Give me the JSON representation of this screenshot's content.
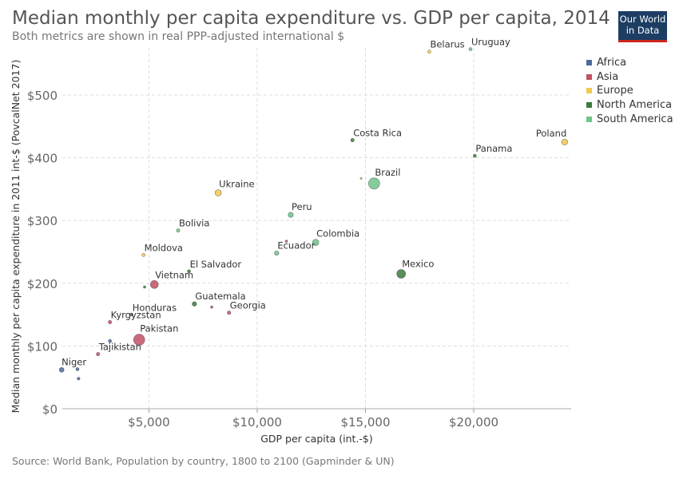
{
  "header": {
    "title": "Median monthly per capita expenditure vs. GDP per capita, 2014",
    "subtitle": "Both metrics are shown in real PPP-adjusted international $",
    "logo_line1": "Our World",
    "logo_line2": "in Data"
  },
  "footer": {
    "source": "Source: World Bank, Population by country, 1800 to 2100 (Gapminder & UN)"
  },
  "colors": {
    "Africa": "#4c6a9c",
    "Asia": "#c15065",
    "Europe": "#f2c94c",
    "North America": "#3c7a3c",
    "South America": "#6fc489"
  },
  "chart_data": {
    "type": "scatter",
    "title": "Median monthly per capita expenditure vs. GDP per capita, 2014",
    "subtitle": "Both metrics are shown in real PPP-adjusted international $",
    "xlabel": "GDP per capita (int.-$)",
    "ylabel": "Median monthly per capita expenditure in 2011 int-$ (PovcalNet 2017)",
    "xlim": [
      1000,
      24500
    ],
    "ylim": [
      0,
      575
    ],
    "x_ticks": [
      5000,
      10000,
      15000,
      20000
    ],
    "x_tick_labels": [
      "$5,000",
      "$10,000",
      "$15,000",
      "$20,000"
    ],
    "y_ticks": [
      0,
      100,
      200,
      300,
      400,
      500
    ],
    "y_tick_labels": [
      "$0",
      "$100",
      "$200",
      "$300",
      "$400",
      "$500"
    ],
    "grid": true,
    "legend_position": "right",
    "legend": [
      "Africa",
      "Asia",
      "Europe",
      "North America",
      "South America"
    ],
    "points": [
      {
        "label": "Niger",
        "region": "Africa",
        "x": 970,
        "y": 62,
        "r": 3
      },
      {
        "label": "",
        "region": "Africa",
        "x": 1700,
        "y": 63,
        "r": 2
      },
      {
        "label": "",
        "region": "Africa",
        "x": 1750,
        "y": 48,
        "r": 1.8
      },
      {
        "label": "",
        "region": "Africa",
        "x": 3200,
        "y": 108,
        "r": 2
      },
      {
        "label": "Tajikistan",
        "region": "Asia",
        "x": 2650,
        "y": 87,
        "r": 2.2
      },
      {
        "label": "Kyrgyzstan",
        "region": "Asia",
        "x": 3200,
        "y": 138,
        "r": 2.2
      },
      {
        "label": "Honduras",
        "region": "North America",
        "x": 4200,
        "y": 150,
        "r": 1.8
      },
      {
        "label": "Pakistan",
        "region": "Asia",
        "x": 4550,
        "y": 110,
        "r": 7
      },
      {
        "label": "Vietnam",
        "region": "Asia",
        "x": 5250,
        "y": 198,
        "r": 5
      },
      {
        "label": "",
        "region": "North America",
        "x": 4800,
        "y": 194,
        "r": 1.5
      },
      {
        "label": "Moldova",
        "region": "Europe",
        "x": 4750,
        "y": 245,
        "r": 2
      },
      {
        "label": "Bolivia",
        "region": "South America",
        "x": 6350,
        "y": 284,
        "r": 2.2
      },
      {
        "label": "El Salvador",
        "region": "North America",
        "x": 6850,
        "y": 219,
        "r": 2
      },
      {
        "label": "Guatemala",
        "region": "North America",
        "x": 7100,
        "y": 167,
        "r": 2.8
      },
      {
        "label": "",
        "region": "Asia",
        "x": 7900,
        "y": 162,
        "r": 1.5
      },
      {
        "label": "Georgia",
        "region": "Asia",
        "x": 8700,
        "y": 153,
        "r": 2.2
      },
      {
        "label": "Ukraine",
        "region": "Europe",
        "x": 8200,
        "y": 344,
        "r": 4
      },
      {
        "label": "",
        "region": "Asia",
        "x": 11350,
        "y": 267,
        "r": 1.5
      },
      {
        "label": "Ecuador",
        "region": "South America",
        "x": 10900,
        "y": 248,
        "r": 2.8
      },
      {
        "label": "Peru",
        "region": "South America",
        "x": 11550,
        "y": 309,
        "r": 3.2
      },
      {
        "label": "Colombia",
        "region": "South America",
        "x": 12700,
        "y": 265,
        "r": 4
      },
      {
        "label": "Costa Rica",
        "region": "North America",
        "x": 14400,
        "y": 428,
        "r": 2.2
      },
      {
        "label": "",
        "region": "Europe",
        "x": 14800,
        "y": 367,
        "r": 1.2
      },
      {
        "label": "Brazil",
        "region": "South America",
        "x": 15400,
        "y": 359,
        "r": 7
      },
      {
        "label": "Mexico",
        "region": "North America",
        "x": 16650,
        "y": 215,
        "r": 5.5
      },
      {
        "label": "Belarus",
        "region": "Europe",
        "x": 17950,
        "y": 569,
        "r": 2
      },
      {
        "label": "Uruguay",
        "region": "South America",
        "x": 19850,
        "y": 573,
        "r": 2
      },
      {
        "label": "Panama",
        "region": "North America",
        "x": 20050,
        "y": 403,
        "r": 2
      },
      {
        "label": "Poland",
        "region": "Europe",
        "x": 24200,
        "y": 425,
        "r": 3.8
      }
    ]
  }
}
